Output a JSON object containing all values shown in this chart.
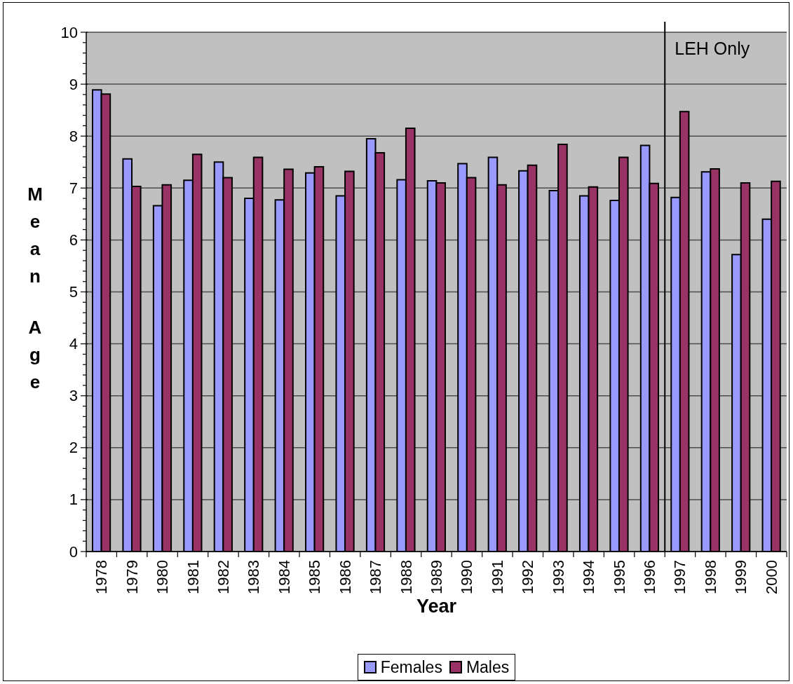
{
  "chart_data": {
    "type": "bar",
    "xlabel": "Year",
    "ylabel": "Mean Age",
    "x": [
      1978,
      1979,
      1980,
      1981,
      1982,
      1983,
      1984,
      1985,
      1986,
      1987,
      1988,
      1989,
      1990,
      1991,
      1992,
      1993,
      1994,
      1995,
      1996,
      1997,
      1998,
      1999,
      2000
    ],
    "xlim": [
      1977.5,
      2000.5
    ],
    "xticks": [
      {
        "value": 1977.5,
        "label": null
      },
      1978,
      {
        "value": 1978.5,
        "label": null
      },
      1979,
      {
        "value": 1979.5,
        "label": null
      },
      1980,
      {
        "value": 1980.5,
        "label": null
      },
      1981,
      {
        "value": 1981.5,
        "label": null
      },
      1982,
      {
        "value": 1982.5,
        "label": null
      },
      1983,
      {
        "value": 1983.5,
        "label": null
      },
      1984,
      {
        "value": 1984.5,
        "label": null
      },
      1985,
      {
        "value": 1985.5,
        "label": null
      },
      1986,
      {
        "value": 1986.5,
        "label": null
      },
      1987,
      {
        "value": 1987.5,
        "label": null
      },
      1988,
      {
        "value": 1988.5,
        "label": null
      },
      1989,
      {
        "value": 1989.5,
        "label": null
      },
      1990,
      {
        "value": 1990.5,
        "label": null
      },
      1991,
      {
        "value": 1991.5,
        "label": null
      },
      1992,
      {
        "value": 1992.5,
        "label": null
      },
      1993,
      {
        "value": 1993.5,
        "label": null
      },
      1994,
      {
        "value": 1994.5,
        "label": null
      },
      1995,
      {
        "value": 1995.5,
        "label": null
      },
      1996,
      {
        "value": 1996.5,
        "label": null
      },
      1997,
      {
        "value": 1997.5,
        "label": null
      },
      1998,
      {
        "value": 1998.5,
        "label": null
      },
      1999,
      {
        "value": 1999.5,
        "label": null
      },
      2000,
      {
        "value": 2000.5,
        "label": null
      }
    ],
    "ylim": [
      0,
      10
    ],
    "yticks": [
      0,
      {
        "value": 0.2,
        "label": null
      },
      {
        "value": 0.4,
        "label": null
      },
      {
        "value": 0.6,
        "label": null
      },
      {
        "value": 0.8,
        "label": null
      },
      1,
      {
        "value": 1.2,
        "label": null
      },
      {
        "value": 1.4,
        "label": null
      },
      {
        "value": 1.6,
        "label": null
      },
      {
        "value": 1.8,
        "label": null
      },
      2,
      {
        "value": 2.2,
        "label": null
      },
      {
        "value": 2.4,
        "label": null
      },
      {
        "value": 2.6,
        "label": null
      },
      {
        "value": 2.8,
        "label": null
      },
      3,
      {
        "value": 3.2,
        "label": null
      },
      {
        "value": 3.4,
        "label": null
      },
      {
        "value": 3.6,
        "label": null
      },
      {
        "value": 3.8,
        "label": null
      },
      4,
      {
        "value": 4.2,
        "label": null
      },
      {
        "value": 4.4,
        "label": null
      },
      {
        "value": 4.6,
        "label": null
      },
      {
        "value": 4.8,
        "label": null
      },
      5,
      {
        "value": 5.2,
        "label": null
      },
      {
        "value": 5.4,
        "label": null
      },
      {
        "value": 5.6,
        "label": null
      },
      {
        "value": 5.8,
        "label": null
      },
      6,
      {
        "value": 6.2,
        "label": null
      },
      {
        "value": 6.4,
        "label": null
      },
      {
        "value": 6.6,
        "label": null
      },
      {
        "value": 6.8,
        "label": null
      },
      7,
      {
        "value": 7.2,
        "label": null
      },
      {
        "value": 7.4,
        "label": null
      },
      {
        "value": 7.6,
        "label": null
      },
      {
        "value": 7.8,
        "label": null
      },
      8,
      {
        "value": 8.2,
        "label": null
      },
      {
        "value": 8.4,
        "label": null
      },
      {
        "value": 8.6,
        "label": null
      },
      {
        "value": 8.8,
        "label": null
      },
      9,
      {
        "value": 9.2,
        "label": null
      },
      {
        "value": 9.4,
        "label": null
      },
      {
        "value": 9.6,
        "label": null
      },
      {
        "value": 9.8,
        "label": null
      },
      10
    ],
    "grid": "y",
    "legend": "bottom",
    "series": [
      {
        "name": "Females",
        "color": "#9999ff",
        "values": [
          8.89,
          7.56,
          6.66,
          7.15,
          7.5,
          6.8,
          6.77,
          7.29,
          6.85,
          7.95,
          7.16,
          7.14,
          7.47,
          7.59,
          7.33,
          6.95,
          6.85,
          6.76,
          7.82,
          6.82,
          7.31,
          5.72,
          6.4
        ]
      },
      {
        "name": "Males",
        "color": "#993366",
        "values": [
          8.81,
          7.03,
          7.06,
          7.65,
          7.2,
          7.59,
          7.36,
          7.41,
          7.32,
          7.68,
          8.15,
          7.1,
          7.2,
          7.06,
          7.44,
          7.84,
          7.02,
          7.59,
          7.09,
          8.47,
          7.37,
          7.1,
          7.13
        ]
      }
    ],
    "ref_lines": [
      {
        "axis": "x",
        "value": 1996.5,
        "label": "LEH Only",
        "color": "#000000"
      }
    ]
  }
}
